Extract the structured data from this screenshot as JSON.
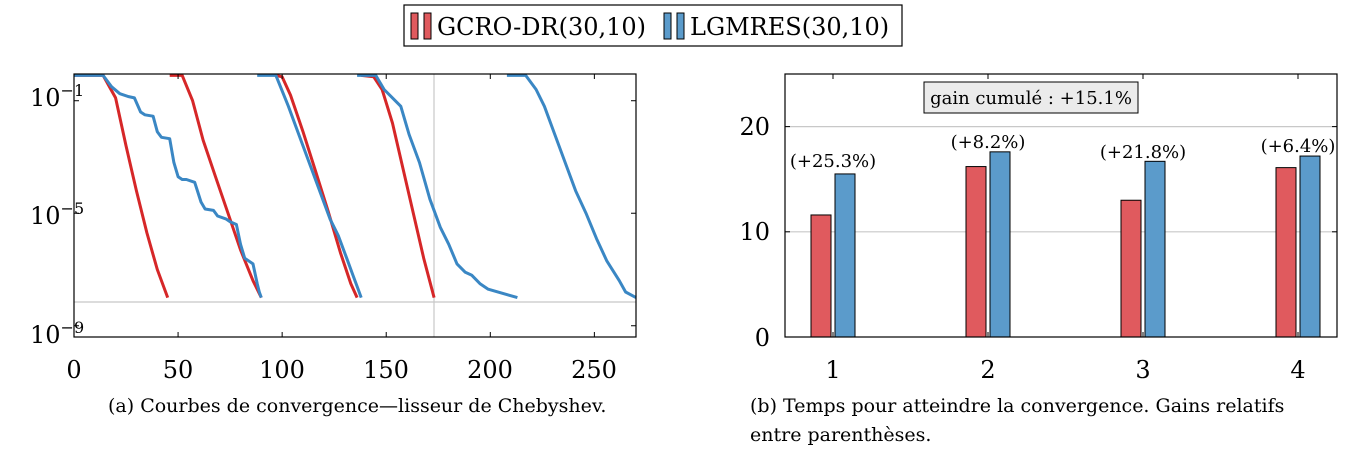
{
  "legend": {
    "entries": [
      {
        "label": "GCRO-DR(30,10)",
        "color": "#e05a5e"
      },
      {
        "label": "LGMRES(30,10)",
        "color": "#5b9bcb"
      }
    ]
  },
  "chart_data": [
    {
      "id": "a",
      "type": "line",
      "caption": "(a) Courbes de convergence—lisseur de Chebyshev.",
      "xlabel": "",
      "ylabel": "",
      "xlim": [
        0,
        270
      ],
      "ylim_log10": [
        -9.4,
        -0.05
      ],
      "y_scale": "log",
      "xticks": [
        0,
        50,
        100,
        150,
        200,
        250
      ],
      "xtick_labels": [
        "0",
        "50",
        "100",
        "150",
        "200",
        "250"
      ],
      "yticks_log10": [
        -1,
        -5,
        -9
      ],
      "ytick_labels": [
        {
          "base": "10",
          "exp": "−1"
        },
        {
          "base": "10",
          "exp": "−5"
        },
        {
          "base": "10",
          "exp": "−9"
        }
      ],
      "reference_lines": {
        "y_log10": -8,
        "x": 173
      },
      "series": [
        {
          "method": "GCRO-DR(30,10)",
          "color": "#d62728",
          "points": [
            [
              0,
              -0.1
            ],
            [
              14,
              -0.1
            ],
            [
              20,
              -0.9
            ],
            [
              25,
              -2.6
            ],
            [
              30,
              -4.2
            ],
            [
              35,
              -5.7
            ],
            [
              40,
              -7
            ],
            [
              45,
              -8
            ]
          ]
        },
        {
          "method": "GCRO-DR(30,10)",
          "color": "#d62728",
          "points": [
            [
              46,
              -0.1
            ],
            [
              52,
              -0.1
            ],
            [
              57,
              -1
            ],
            [
              62,
              -2.4
            ],
            [
              68,
              -3.7
            ],
            [
              74,
              -5
            ],
            [
              80,
              -6.3
            ],
            [
              86,
              -7.4
            ],
            [
              90,
              -8
            ]
          ]
        },
        {
          "method": "GCRO-DR(30,10)",
          "color": "#d62728",
          "points": [
            [
              97,
              -0.1
            ],
            [
              100,
              -0.15
            ],
            [
              104,
              -0.8
            ],
            [
              110,
              -2.1
            ],
            [
              116,
              -3.5
            ],
            [
              122,
              -4.9
            ],
            [
              128,
              -6.4
            ],
            [
              133,
              -7.5
            ],
            [
              136,
              -8
            ]
          ]
        },
        {
          "method": "GCRO-DR(30,10)",
          "color": "#d62728",
          "points": [
            [
              138,
              -0.1
            ],
            [
              144,
              -0.15
            ],
            [
              148,
              -0.6
            ],
            [
              153,
              -1.8
            ],
            [
              158,
              -3.4
            ],
            [
              163,
              -5
            ],
            [
              168,
              -6.6
            ],
            [
              173,
              -8
            ]
          ]
        },
        {
          "method": "LGMRES(30,10)",
          "color": "#3a87c4",
          "points": [
            [
              0,
              -0.1
            ],
            [
              14,
              -0.1
            ],
            [
              18,
              -0.5
            ],
            [
              22,
              -0.75
            ],
            [
              26,
              -0.85
            ],
            [
              29,
              -0.9
            ],
            [
              32,
              -1.4
            ],
            [
              34,
              -1.5
            ],
            [
              38,
              -1.55
            ],
            [
              40,
              -2.1
            ],
            [
              42,
              -2.3
            ],
            [
              46,
              -2.35
            ],
            [
              48,
              -3.2
            ],
            [
              50,
              -3.7
            ],
            [
              52,
              -3.8
            ],
            [
              54,
              -3.8
            ],
            [
              58,
              -3.9
            ],
            [
              61,
              -4.6
            ],
            [
              63,
              -4.85
            ],
            [
              67,
              -4.9
            ],
            [
              69,
              -5.1
            ],
            [
              73,
              -5.2
            ],
            [
              75,
              -5.3
            ],
            [
              78,
              -5.4
            ],
            [
              80,
              -6.1
            ],
            [
              82,
              -6.6
            ],
            [
              86,
              -6.8
            ],
            [
              88,
              -7.5
            ],
            [
              89,
              -7.8
            ],
            [
              90,
              -8
            ]
          ]
        },
        {
          "method": "LGMRES(30,10)",
          "color": "#3a87c4",
          "points": [
            [
              88,
              -0.1
            ],
            [
              97,
              -0.1
            ],
            [
              103,
              -1.2
            ],
            [
              108,
              -2.2
            ],
            [
              113,
              -3.2
            ],
            [
              118,
              -4.2
            ],
            [
              123,
              -5.2
            ],
            [
              127,
              -5.8
            ],
            [
              131,
              -6.6
            ],
            [
              134,
              -7.2
            ],
            [
              136,
              -7.6
            ],
            [
              138,
              -8
            ]
          ]
        },
        {
          "method": "LGMRES(30,10)",
          "color": "#3a87c4",
          "points": [
            [
              136,
              -0.1
            ],
            [
              145,
              -0.1
            ],
            [
              149,
              -0.6
            ],
            [
              153,
              -0.9
            ],
            [
              157,
              -1.2
            ],
            [
              161,
              -2.2
            ],
            [
              166,
              -3.2
            ],
            [
              171,
              -4.5
            ],
            [
              176,
              -5.5
            ],
            [
              180,
              -6.1
            ],
            [
              184,
              -6.8
            ],
            [
              188,
              -7.1
            ],
            [
              191,
              -7.2
            ],
            [
              195,
              -7.5
            ],
            [
              199,
              -7.7
            ],
            [
              213,
              -8
            ]
          ]
        },
        {
          "method": "LGMRES(30,10)",
          "color": "#3a87c4",
          "points": [
            [
              208,
              -0.1
            ],
            [
              217,
              -0.1
            ],
            [
              222,
              -0.6
            ],
            [
              226,
              -1.2
            ],
            [
              231,
              -2.2
            ],
            [
              236,
              -3.2
            ],
            [
              241,
              -4.2
            ],
            [
              246,
              -5
            ],
            [
              251,
              -5.9
            ],
            [
              256,
              -6.7
            ],
            [
              262,
              -7.4
            ],
            [
              265,
              -7.8
            ],
            [
              270,
              -8
            ]
          ]
        }
      ]
    },
    {
      "id": "b",
      "type": "bar",
      "caption": "(b) Temps pour atteindre la convergence. Gains relatifs entre parenthèses.",
      "xlabel": "",
      "ylabel": "",
      "categories": [
        "1",
        "2",
        "3",
        "4"
      ],
      "ylim": [
        0,
        25
      ],
      "yticks": [
        0,
        10,
        20
      ],
      "ytick_labels": [
        "0",
        "10",
        "20"
      ],
      "series": [
        {
          "name": "GCRO-DR(30,10)",
          "color": "#e05a5e",
          "values": [
            11.6,
            16.2,
            13.0,
            16.1
          ]
        },
        {
          "name": "LGMRES(30,10)",
          "color": "#5b9bcb",
          "values": [
            15.5,
            17.6,
            16.7,
            17.2
          ]
        }
      ],
      "annotations": [
        "(+25.3%)",
        "(+8.2%)",
        "(+21.8%)",
        "(+6.4%)"
      ],
      "summary_box": "gain cumulé : +15.1%",
      "grid": "horizontal"
    }
  ]
}
